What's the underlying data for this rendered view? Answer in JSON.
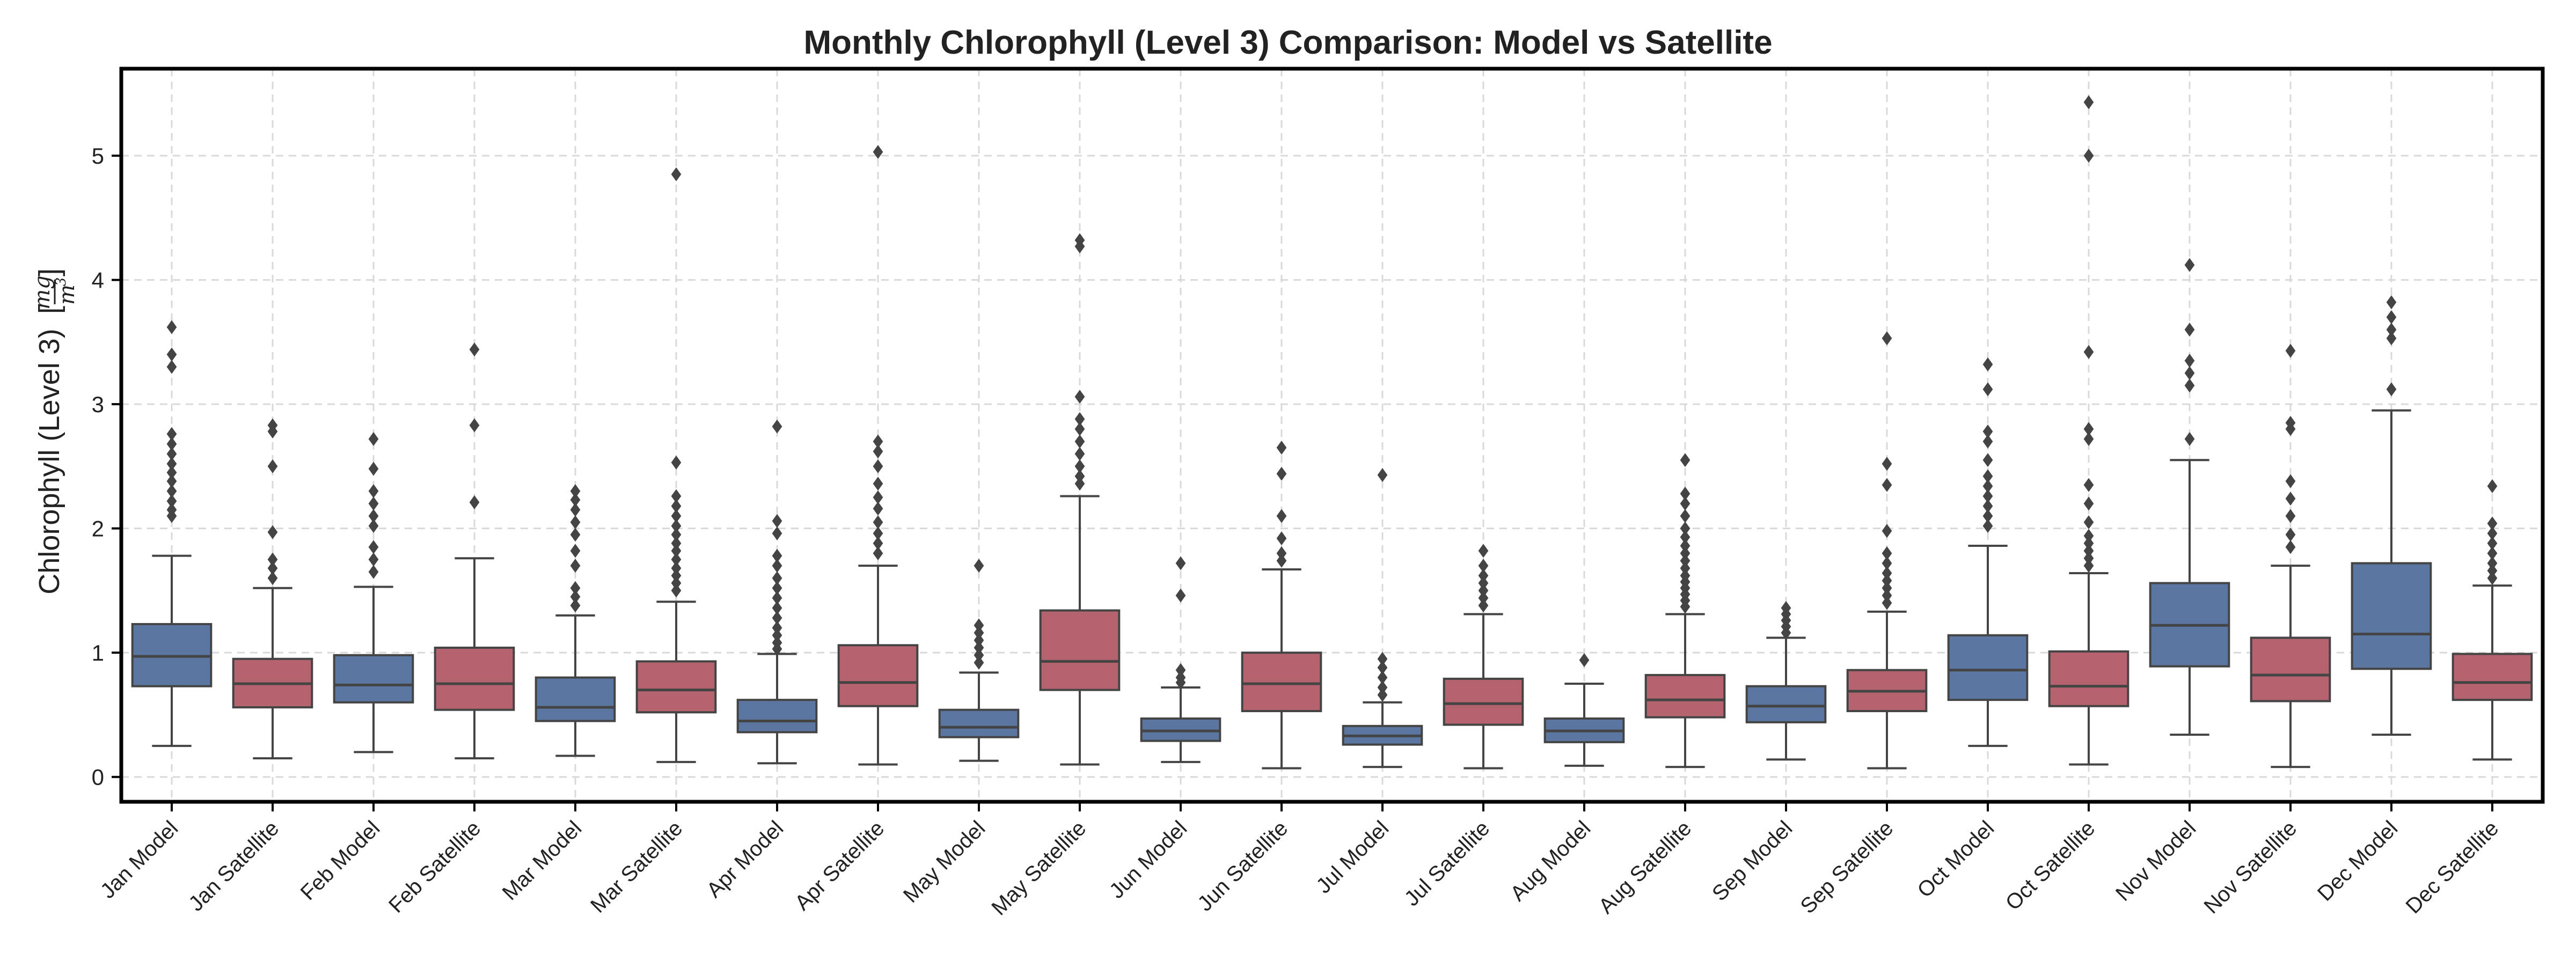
{
  "chart_data": {
    "type": "box",
    "title": "Monthly Chlorophyll (Level 3) Comparison: Model vs Satellite",
    "ylabel": "Chlorophyll (Level 3)",
    "ylabel_unit": {
      "numerator": "mg",
      "denominator": "m",
      "exponent": "3"
    },
    "xlabel": "",
    "ylim": [
      -0.2,
      5.7
    ],
    "yticks": [
      "0",
      "1",
      "2",
      "3",
      "4",
      "5"
    ],
    "grid": true,
    "colors": {
      "Model": "#5b76a0",
      "Satellite": "#b5636e",
      "median": "#444444",
      "whisker": "#444444",
      "outlier": "#444444"
    },
    "categories": [
      "Jan Model",
      "Jan Satellite",
      "Feb Model",
      "Feb Satellite",
      "Mar Model",
      "Mar Satellite",
      "Apr Model",
      "Apr Satellite",
      "May Model",
      "May Satellite",
      "Jun Model",
      "Jun Satellite",
      "Jul Model",
      "Jul Satellite",
      "Aug Model",
      "Aug Satellite",
      "Sep Model",
      "Sep Satellite",
      "Oct Model",
      "Oct Satellite",
      "Nov Model",
      "Nov Satellite",
      "Dec Model",
      "Dec Satellite"
    ],
    "boxes": [
      {
        "label": "Jan Model",
        "group": "Model",
        "whislo": 0.25,
        "q1": 0.73,
        "median": 0.97,
        "q3": 1.23,
        "whishi": 1.78,
        "fliers": [
          2.1,
          2.15,
          2.22,
          2.3,
          2.38,
          2.45,
          2.52,
          2.6,
          2.68,
          2.76,
          3.3,
          3.4,
          3.62
        ]
      },
      {
        "label": "Jan Satellite",
        "group": "Satellite",
        "whislo": 0.15,
        "q1": 0.56,
        "median": 0.75,
        "q3": 0.95,
        "whishi": 1.52,
        "fliers": [
          1.6,
          1.68,
          1.75,
          1.97,
          2.5,
          2.78,
          2.83
        ]
      },
      {
        "label": "Feb Model",
        "group": "Model",
        "whislo": 0.2,
        "q1": 0.6,
        "median": 0.74,
        "q3": 0.98,
        "whishi": 1.53,
        "fliers": [
          1.65,
          1.75,
          1.85,
          2.02,
          2.1,
          2.2,
          2.3,
          2.48,
          2.72
        ]
      },
      {
        "label": "Feb Satellite",
        "group": "Satellite",
        "whislo": 0.15,
        "q1": 0.54,
        "median": 0.75,
        "q3": 1.04,
        "whishi": 1.76,
        "fliers": [
          2.21,
          2.83,
          3.44
        ]
      },
      {
        "label": "Mar Model",
        "group": "Model",
        "whislo": 0.17,
        "q1": 0.45,
        "median": 0.56,
        "q3": 0.8,
        "whishi": 1.3,
        "fliers": [
          1.38,
          1.45,
          1.52,
          1.7,
          1.82,
          1.95,
          2.05,
          2.15,
          2.23,
          2.3
        ]
      },
      {
        "label": "Mar Satellite",
        "group": "Satellite",
        "whislo": 0.12,
        "q1": 0.52,
        "median": 0.7,
        "q3": 0.93,
        "whishi": 1.41,
        "fliers": [
          1.5,
          1.56,
          1.62,
          1.68,
          1.75,
          1.82,
          1.88,
          1.95,
          2.02,
          2.1,
          2.18,
          2.26,
          2.53,
          4.85
        ]
      },
      {
        "label": "Apr Model",
        "group": "Model",
        "whislo": 0.11,
        "q1": 0.36,
        "median": 0.45,
        "q3": 0.62,
        "whishi": 0.99,
        "fliers": [
          1.03,
          1.08,
          1.14,
          1.2,
          1.28,
          1.36,
          1.44,
          1.52,
          1.6,
          1.7,
          1.78,
          1.96,
          2.06,
          2.82
        ]
      },
      {
        "label": "Apr Satellite",
        "group": "Satellite",
        "whislo": 0.1,
        "q1": 0.57,
        "median": 0.76,
        "q3": 1.06,
        "whishi": 1.7,
        "fliers": [
          1.8,
          1.88,
          1.96,
          2.05,
          2.16,
          2.25,
          2.36,
          2.5,
          2.62,
          2.7,
          5.03
        ]
      },
      {
        "label": "May Model",
        "group": "Model",
        "whislo": 0.13,
        "q1": 0.32,
        "median": 0.4,
        "q3": 0.54,
        "whishi": 0.84,
        "fliers": [
          0.92,
          0.98,
          1.04,
          1.1,
          1.16,
          1.22,
          1.7
        ]
      },
      {
        "label": "May Satellite",
        "group": "Satellite",
        "whislo": 0.1,
        "q1": 0.7,
        "median": 0.93,
        "q3": 1.34,
        "whishi": 2.26,
        "fliers": [
          2.36,
          2.42,
          2.5,
          2.6,
          2.7,
          2.8,
          2.88,
          3.06,
          4.27,
          4.32
        ]
      },
      {
        "label": "Jun Model",
        "group": "Model",
        "whislo": 0.12,
        "q1": 0.29,
        "median": 0.37,
        "q3": 0.47,
        "whishi": 0.72,
        "fliers": [
          0.76,
          0.8,
          0.86,
          1.46,
          1.72
        ]
      },
      {
        "label": "Jun Satellite",
        "group": "Satellite",
        "whislo": 0.07,
        "q1": 0.53,
        "median": 0.75,
        "q3": 1.0,
        "whishi": 1.67,
        "fliers": [
          1.74,
          1.8,
          1.92,
          2.1,
          2.44,
          2.65
        ]
      },
      {
        "label": "Jul Model",
        "group": "Model",
        "whislo": 0.08,
        "q1": 0.26,
        "median": 0.33,
        "q3": 0.41,
        "whishi": 0.6,
        "fliers": [
          0.66,
          0.72,
          0.8,
          0.88,
          0.95,
          2.43
        ]
      },
      {
        "label": "Jul Satellite",
        "group": "Satellite",
        "whislo": 0.07,
        "q1": 0.42,
        "median": 0.59,
        "q3": 0.79,
        "whishi": 1.31,
        "fliers": [
          1.38,
          1.44,
          1.5,
          1.56,
          1.62,
          1.7,
          1.82
        ]
      },
      {
        "label": "Aug Model",
        "group": "Model",
        "whislo": 0.09,
        "q1": 0.28,
        "median": 0.37,
        "q3": 0.47,
        "whishi": 0.75,
        "fliers": [
          0.94
        ]
      },
      {
        "label": "Aug Satellite",
        "group": "Satellite",
        "whislo": 0.08,
        "q1": 0.48,
        "median": 0.62,
        "q3": 0.82,
        "whishi": 1.31,
        "fliers": [
          1.37,
          1.42,
          1.47,
          1.52,
          1.57,
          1.62,
          1.68,
          1.74,
          1.8,
          1.86,
          1.93,
          2.0,
          2.1,
          2.2,
          2.28,
          2.55
        ]
      },
      {
        "label": "Sep Model",
        "group": "Model",
        "whislo": 0.14,
        "q1": 0.44,
        "median": 0.57,
        "q3": 0.73,
        "whishi": 1.12,
        "fliers": [
          1.16,
          1.21,
          1.26,
          1.31,
          1.36
        ]
      },
      {
        "label": "Sep Satellite",
        "group": "Satellite",
        "whislo": 0.07,
        "q1": 0.53,
        "median": 0.69,
        "q3": 0.86,
        "whishi": 1.33,
        "fliers": [
          1.4,
          1.46,
          1.52,
          1.58,
          1.64,
          1.72,
          1.8,
          1.98,
          2.35,
          2.52,
          3.53
        ]
      },
      {
        "label": "Oct Model",
        "group": "Model",
        "whislo": 0.25,
        "q1": 0.62,
        "median": 0.86,
        "q3": 1.14,
        "whishi": 1.86,
        "fliers": [
          2.02,
          2.1,
          2.18,
          2.26,
          2.34,
          2.42,
          2.55,
          2.7,
          2.78,
          3.12,
          3.32
        ]
      },
      {
        "label": "Oct Satellite",
        "group": "Satellite",
        "whislo": 0.1,
        "q1": 0.57,
        "median": 0.73,
        "q3": 1.01,
        "whishi": 1.64,
        "fliers": [
          1.7,
          1.76,
          1.82,
          1.88,
          1.94,
          2.05,
          2.2,
          2.35,
          2.72,
          2.8,
          3.42,
          5.0,
          5.43
        ]
      },
      {
        "label": "Nov Model",
        "group": "Model",
        "whislo": 0.34,
        "q1": 0.89,
        "median": 1.22,
        "q3": 1.56,
        "whishi": 2.55,
        "fliers": [
          2.72,
          3.15,
          3.25,
          3.35,
          3.6,
          4.12
        ]
      },
      {
        "label": "Nov Satellite",
        "group": "Satellite",
        "whislo": 0.08,
        "q1": 0.61,
        "median": 0.82,
        "q3": 1.12,
        "whishi": 1.7,
        "fliers": [
          1.85,
          1.95,
          2.1,
          2.24,
          2.38,
          2.8,
          2.85,
          3.43
        ]
      },
      {
        "label": "Dec Model",
        "group": "Model",
        "whislo": 0.34,
        "q1": 0.87,
        "median": 1.15,
        "q3": 1.72,
        "whishi": 2.95,
        "fliers": [
          3.12,
          3.53,
          3.6,
          3.7,
          3.82
        ]
      },
      {
        "label": "Dec Satellite",
        "group": "Satellite",
        "whislo": 0.14,
        "q1": 0.62,
        "median": 0.76,
        "q3": 0.99,
        "whishi": 1.54,
        "fliers": [
          1.6,
          1.66,
          1.72,
          1.8,
          1.88,
          1.96,
          2.04,
          2.34
        ]
      }
    ]
  }
}
